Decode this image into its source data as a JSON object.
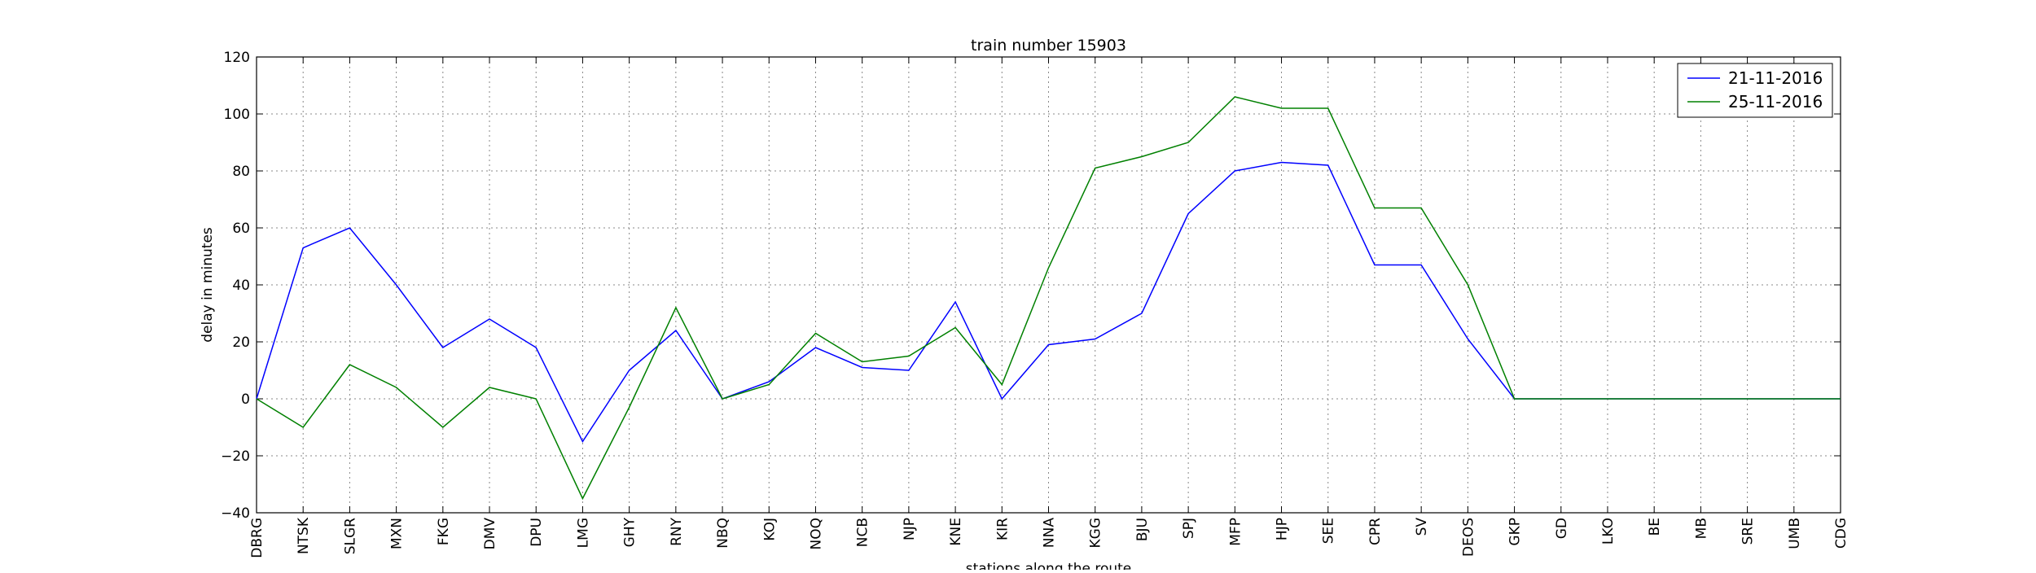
{
  "chart_data": {
    "type": "line",
    "title": "train number 15903",
    "xlabel": "stations along the route",
    "ylabel": "delay in minutes",
    "ylim": [
      -40,
      120
    ],
    "yticks": [
      -40,
      -20,
      0,
      20,
      40,
      60,
      80,
      100,
      120
    ],
    "y_tick_labels": [
      "−40",
      "−20",
      "0",
      "20",
      "40",
      "60",
      "80",
      "100",
      "120"
    ],
    "grid": true,
    "legend_position": "top-right",
    "categories": [
      "DBRG",
      "NTSK",
      "SLGR",
      "MXN",
      "FKG",
      "DMV",
      "DPU",
      "LMG",
      "GHY",
      "RNY",
      "NBQ",
      "KOJ",
      "NOQ",
      "NCB",
      "NJP",
      "KNE",
      "KIR",
      "NNA",
      "KGG",
      "BJU",
      "SPJ",
      "MFP",
      "HJP",
      "SEE",
      "CPR",
      "SV",
      "DEOS",
      "GKP",
      "GD",
      "LKO",
      "BE",
      "MB",
      "SRE",
      "UMB",
      "CDG"
    ],
    "series": [
      {
        "name": "21-11-2016",
        "color": "#0000ff",
        "values": [
          0,
          53,
          60,
          40,
          18,
          28,
          18,
          -15,
          10,
          24,
          0,
          6,
          18,
          11,
          10,
          34,
          0,
          19,
          21,
          30,
          65,
          80,
          83,
          82,
          47,
          47,
          21,
          0,
          0,
          0,
          0,
          0,
          0,
          0,
          0
        ]
      },
      {
        "name": "25-11-2016",
        "color": "#008000",
        "values": [
          0,
          -10,
          12,
          4,
          -10,
          4,
          0,
          -35,
          -3,
          32,
          0,
          5,
          23,
          13,
          15,
          25,
          5,
          46,
          81,
          85,
          90,
          106,
          102,
          102,
          67,
          67,
          40,
          0,
          0,
          0,
          0,
          0,
          0,
          0,
          0
        ]
      }
    ]
  }
}
